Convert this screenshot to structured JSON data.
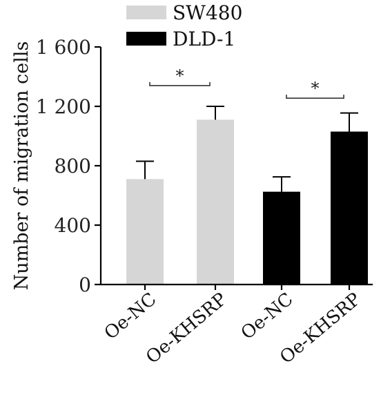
{
  "chart_data": {
    "type": "bar",
    "ylabel": "Number of migration cells",
    "ylim": [
      0,
      1600
    ],
    "yticks": [
      0,
      400,
      800,
      1200,
      1600
    ],
    "ytick_labels": [
      "0",
      "400",
      "800",
      "1 200",
      "1 600"
    ],
    "bars": [
      {
        "category": "Oe-NC",
        "series": "SW480",
        "value": 710,
        "error": 120
      },
      {
        "category": "Oe-KHSRP",
        "series": "SW480",
        "value": 1110,
        "error": 90
      },
      {
        "category": "Oe-NC",
        "series": "DLD-1",
        "value": 625,
        "error": 100
      },
      {
        "category": "Oe-KHSRP",
        "series": "DLD-1",
        "value": 1030,
        "error": 125
      }
    ],
    "series": [
      {
        "name": "SW480",
        "color": "#d6d6d6"
      },
      {
        "name": "DLD-1",
        "color": "#000000"
      }
    ],
    "significance": [
      {
        "from": 0,
        "to": 1,
        "label": "*",
        "y": 1340
      },
      {
        "from": 2,
        "to": 3,
        "label": "*",
        "y": 1255
      }
    ],
    "legend_position": "top",
    "grid": false
  }
}
